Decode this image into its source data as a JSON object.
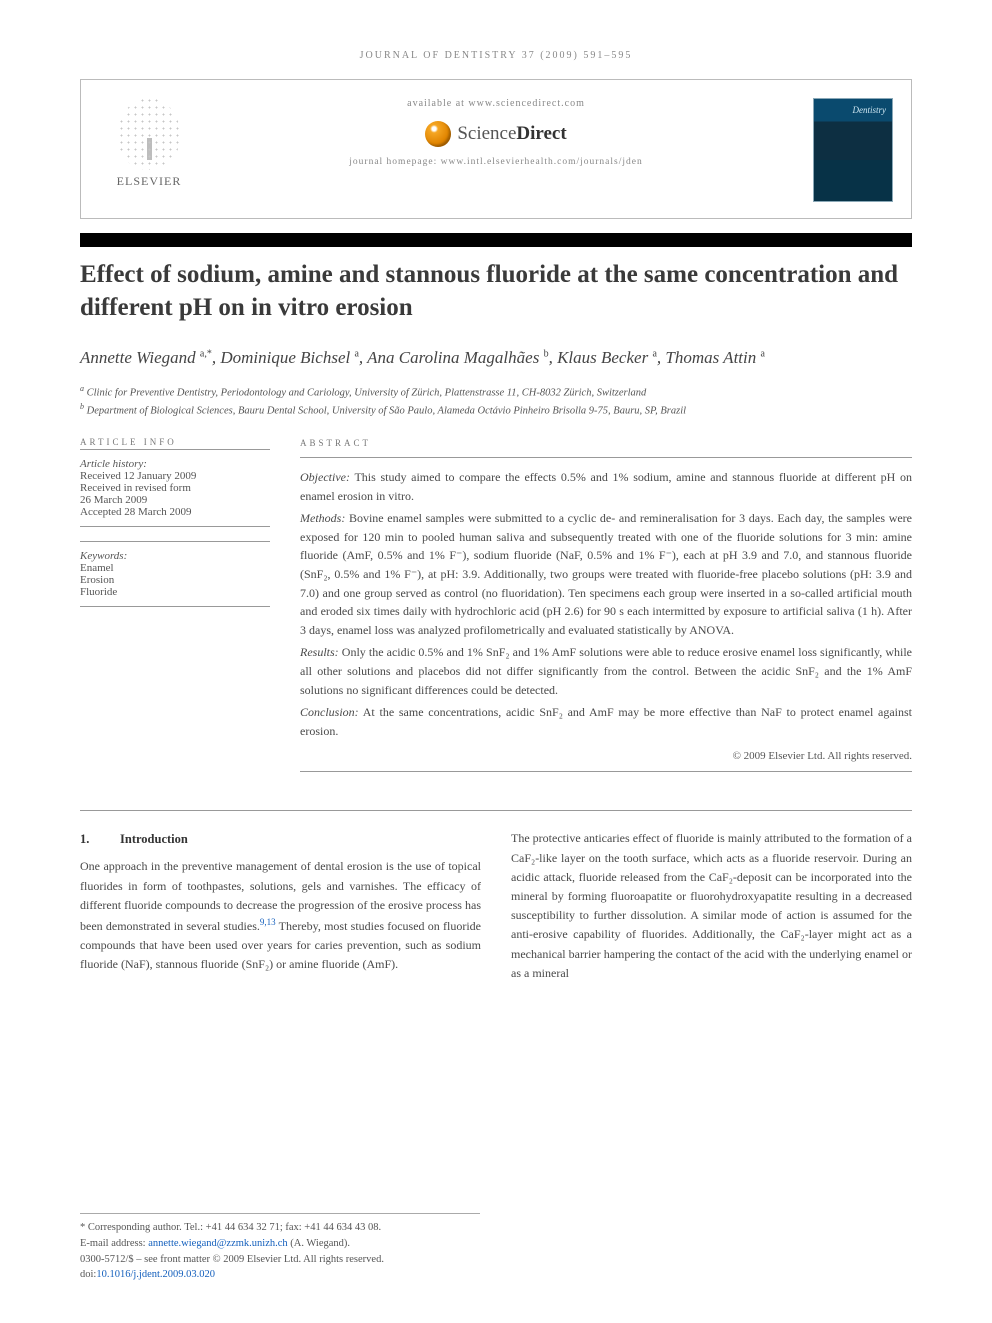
{
  "journal_ref": "JOURNAL OF DENTISTRY 37 (2009) 591–595",
  "header": {
    "available": "available at www.sciencedirect.com",
    "sd_text_light": "Science",
    "sd_text_bold": "Direct",
    "homepage": "journal homepage: www.intl.elsevierhealth.com/journals/jden",
    "elsevier": "ELSEVIER"
  },
  "title": "Effect of sodium, amine and stannous fluoride at the same concentration and different pH on in vitro erosion",
  "authors_html": "Annette Wiegand <sup>a,*</sup>, Dominique Bichsel <sup>a</sup>, Ana Carolina Magalhães <sup>b</sup>, Klaus Becker <sup>a</sup>, Thomas Attin <sup>a</sup>",
  "affiliations": [
    "a Clinic for Preventive Dentistry, Periodontology and Cariology, University of Zürich, Plattenstrasse 11, CH-8032 Zürich, Switzerland",
    "b Department of Biological Sciences, Bauru Dental School, University of São Paulo, Alameda Octávio Pinheiro Brisolla 9-75, Bauru, SP, Brazil"
  ],
  "article_info": {
    "head": "ARTICLE INFO",
    "history_label": "Article history:",
    "history": [
      "Received 12 January 2009",
      "Received in revised form",
      "26 March 2009",
      "Accepted 28 March 2009"
    ],
    "keywords_label": "Keywords:",
    "keywords": [
      "Enamel",
      "Erosion",
      "Fluoride"
    ]
  },
  "abstract": {
    "head": "ABSTRACT",
    "objective_label": "Objective:",
    "objective": "This study aimed to compare the effects 0.5% and 1% sodium, amine and stannous fluoride at different pH on enamel erosion in vitro.",
    "methods_label": "Methods:",
    "methods": "Bovine enamel samples were submitted to a cyclic de- and remineralisation for 3 days. Each day, the samples were exposed for 120 min to pooled human saliva and subsequently treated with one of the fluoride solutions for 3 min: amine fluoride (AmF, 0.5% and 1% F⁻), sodium fluoride (NaF, 0.5% and 1% F⁻), each at pH 3.9 and 7.0, and stannous fluoride (SnF₂, 0.5% and 1% F⁻), at pH: 3.9. Additionally, two groups were treated with fluoride-free placebo solutions (pH: 3.9 and 7.0) and one group served as control (no fluoridation). Ten specimens each group were inserted in a so-called artificial mouth and eroded six times daily with hydrochloric acid (pH 2.6) for 90 s each intermitted by exposure to artificial saliva (1 h). After 3 days, enamel loss was analyzed profilometrically and evaluated statistically by ANOVA.",
    "results_label": "Results:",
    "results": "Only the acidic 0.5% and 1% SnF₂ and 1% AmF solutions were able to reduce erosive enamel loss significantly, while all other solutions and placebos did not differ significantly from the control. Between the acidic SnF₂ and the 1% AmF solutions no significant differences could be detected.",
    "conclusion_label": "Conclusion:",
    "conclusion": "At the same concentrations, acidic SnF₂ and AmF may be more effective than NaF to protect enamel against erosion.",
    "copyright": "© 2009 Elsevier Ltd. All rights reserved."
  },
  "intro": {
    "num": "1.",
    "heading": "Introduction",
    "col1": "One approach in the preventive management of dental erosion is the use of topical fluorides in form of toothpastes, solutions, gels and varnishes. The efficacy of different fluoride compounds to decrease the progression of the erosive process has been demonstrated in several studies.",
    "col1_refs": "9,13",
    "col1_tail": " Thereby, most studies focused on fluoride compounds that have been used over years for caries prevention, such as sodium fluoride (NaF), stannous fluoride (SnF₂) or amine fluoride (AmF).",
    "col2": "The protective anticaries effect of fluoride is mainly attributed to the formation of a CaF₂-like layer on the tooth surface, which acts as a fluoride reservoir. During an acidic attack, fluoride released from the CaF₂-deposit can be incorporated into the mineral by forming fluoroapatite or fluorohydroxyapatite resulting in a decreased susceptibility to further dissolution. A similar mode of action is assumed for the anti-erosive capability of fluorides. Additionally, the CaF₂-layer might act as a mechanical barrier hampering the contact of the acid with the underlying enamel or as a mineral"
  },
  "footnote": {
    "corr": "* Corresponding author. Tel.: +41 44 634 32 71; fax: +41 44 634 43 08.",
    "email_label": "E-mail address:",
    "email": "annette.wiegand@zzmk.unizh.ch",
    "email_tail": "(A. Wiegand).",
    "line3": "0300-5712/$ – see front matter © 2009 Elsevier Ltd. All rights reserved.",
    "doi_label": "doi:",
    "doi": "10.1016/j.jdent.2009.03.020"
  },
  "colors": {
    "link": "#1560bd",
    "text": "#4a4a4a",
    "rule": "#999999",
    "sd_orange": "#e08400",
    "cover_bg": "#0a4a6e"
  },
  "typography": {
    "title_size_pt": 19,
    "body_size_pt": 9,
    "abstract_size_pt": 9,
    "authors_font": "script-italic"
  }
}
